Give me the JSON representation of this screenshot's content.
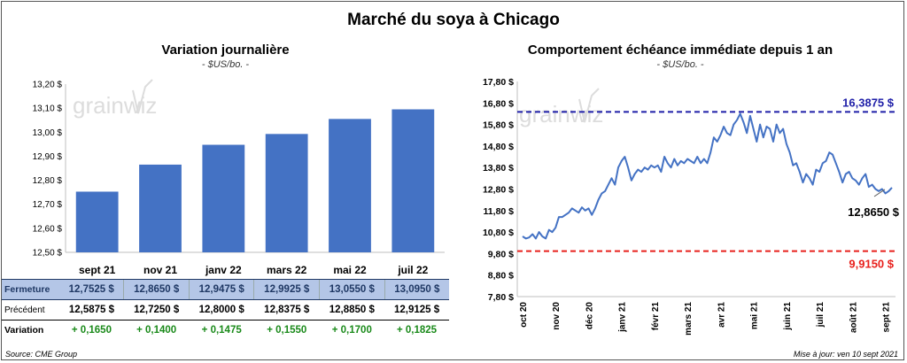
{
  "page": {
    "title": "Marché du soya à Chicago",
    "source": "Source: CME Group",
    "updated": "Mise à jour: ven 10 sept 2021",
    "logo_text": "grainwiz"
  },
  "colors": {
    "bar": "#4472c4",
    "line": "#4472c4",
    "high": "#1f1fa8",
    "low": "#e8201c",
    "positive": "#1a8a1a"
  },
  "table": {
    "rows": [
      {
        "label": "Fermeture",
        "values": [
          "12,7525 $",
          "12,8650 $",
          "12,9475 $",
          "12,9925 $",
          "13,0550 $",
          "13,0950 $"
        ]
      },
      {
        "label": "Précédent",
        "values": [
          "12,5875 $",
          "12,7250 $",
          "12,8000 $",
          "12,8375 $",
          "12,8850 $",
          "12,9125 $"
        ]
      },
      {
        "label": "Variation",
        "values": [
          "+ 0,1650",
          "+ 0,1400",
          "+ 0,1475",
          "+ 0,1550",
          "+ 0,1700",
          "+ 0,1825"
        ]
      }
    ]
  },
  "chart_data": [
    {
      "type": "bar",
      "title": "Variation journalière",
      "subtitle": "- $US/bo. -",
      "categories": [
        "sept 21",
        "nov 21",
        "janv 22",
        "mars 22",
        "mai 22",
        "juil 22"
      ],
      "values": [
        12.7525,
        12.865,
        12.9475,
        12.9925,
        13.055,
        13.095
      ],
      "ylim": [
        12.5,
        13.2
      ],
      "yticks": [
        "13,20 $",
        "13,10 $",
        "13,00 $",
        "12,90 $",
        "12,80 $",
        "12,70 $",
        "12,60 $",
        "12,50 $"
      ],
      "grid": false
    },
    {
      "type": "line",
      "title": "Comportement échéance immédiate depuis 1 an",
      "subtitle": "- $US/bo. -",
      "x_labels": [
        "oct 20",
        "nov 20",
        "déc 20",
        "janv 21",
        "févr 21",
        "mars 21",
        "avr 21",
        "mai 21",
        "juin 21",
        "juil 21",
        "août 21",
        "sept 21"
      ],
      "ylim": [
        7.8,
        17.8
      ],
      "yticks": [
        "17,80 $",
        "16,80 $",
        "15,80 $",
        "14,80 $",
        "13,80 $",
        "12,80 $",
        "11,80 $",
        "10,80 $",
        "9,80 $",
        "8,80 $",
        "7,80 $"
      ],
      "high": {
        "value": 16.3875,
        "label": "16,3875 $"
      },
      "low": {
        "value": 9.915,
        "label": "9,9150 $"
      },
      "last": {
        "value": 12.865,
        "label": "12,8650 $"
      },
      "series": [
        {
          "x": [
            0,
            0.1,
            0.2,
            0.3,
            0.4,
            0.5,
            0.6,
            0.7,
            0.8,
            0.9,
            1.0,
            1.1,
            1.2,
            1.3,
            1.4,
            1.5,
            1.6,
            1.7,
            1.8,
            1.9,
            2.0,
            2.1,
            2.2,
            2.3,
            2.4,
            2.5,
            2.6,
            2.7,
            2.8,
            2.9,
            3.0,
            3.1,
            3.2,
            3.3,
            3.4,
            3.5,
            3.6,
            3.7,
            3.8,
            3.9,
            4.0,
            4.1,
            4.2,
            4.3,
            4.4,
            4.5,
            4.6,
            4.7,
            4.8,
            4.9,
            5.0,
            5.1,
            5.2,
            5.3,
            5.4,
            5.5,
            5.6,
            5.7,
            5.8,
            5.9,
            6.0,
            6.1,
            6.2,
            6.3,
            6.4,
            6.5,
            6.6,
            6.7,
            6.8,
            6.9,
            7.0,
            7.1,
            7.2,
            7.3,
            7.4,
            7.5,
            7.6,
            7.7,
            7.8,
            7.9,
            8.0,
            8.1,
            8.2,
            8.3,
            8.4,
            8.5,
            8.6,
            8.7,
            8.8,
            8.9,
            9.0,
            9.1,
            9.2,
            9.3,
            9.4,
            9.5,
            9.6,
            9.7,
            9.8,
            9.9,
            10.0,
            10.1,
            10.2,
            10.3,
            10.4,
            10.5,
            10.6,
            10.7,
            10.8,
            10.9,
            11.0,
            11.1,
            11.2
          ],
          "values": [
            10.6,
            10.5,
            10.55,
            10.7,
            10.5,
            10.8,
            10.6,
            10.5,
            10.9,
            10.8,
            11.0,
            11.5,
            11.5,
            11.6,
            11.7,
            11.9,
            11.8,
            11.7,
            11.95,
            11.8,
            11.9,
            11.6,
            11.9,
            12.3,
            12.6,
            12.7,
            13.0,
            13.3,
            13.0,
            13.8,
            14.1,
            14.3,
            13.8,
            13.2,
            13.5,
            13.7,
            13.6,
            13.8,
            13.7,
            13.9,
            13.8,
            13.9,
            13.6,
            14.3,
            14.0,
            13.8,
            14.2,
            13.9,
            14.1,
            14.0,
            14.2,
            14.1,
            14.0,
            14.3,
            14.0,
            14.2,
            14.0,
            14.5,
            15.2,
            15.0,
            15.3,
            15.7,
            15.4,
            15.3,
            15.8,
            16.0,
            16.3,
            15.9,
            15.4,
            16.2,
            15.6,
            15.0,
            15.8,
            15.2,
            15.7,
            15.6,
            15.0,
            15.8,
            15.4,
            15.6,
            14.9,
            14.5,
            13.9,
            14.0,
            13.6,
            13.1,
            13.5,
            13.3,
            13.0,
            13.7,
            13.6,
            14.0,
            14.1,
            14.5,
            14.4,
            14.0,
            13.6,
            13.1,
            13.5,
            13.6,
            13.3,
            13.2,
            13.0,
            13.3,
            13.5,
            12.9,
            13.0,
            12.8,
            12.7,
            12.8,
            12.6,
            12.7,
            12.865
          ]
        }
      ]
    }
  ]
}
